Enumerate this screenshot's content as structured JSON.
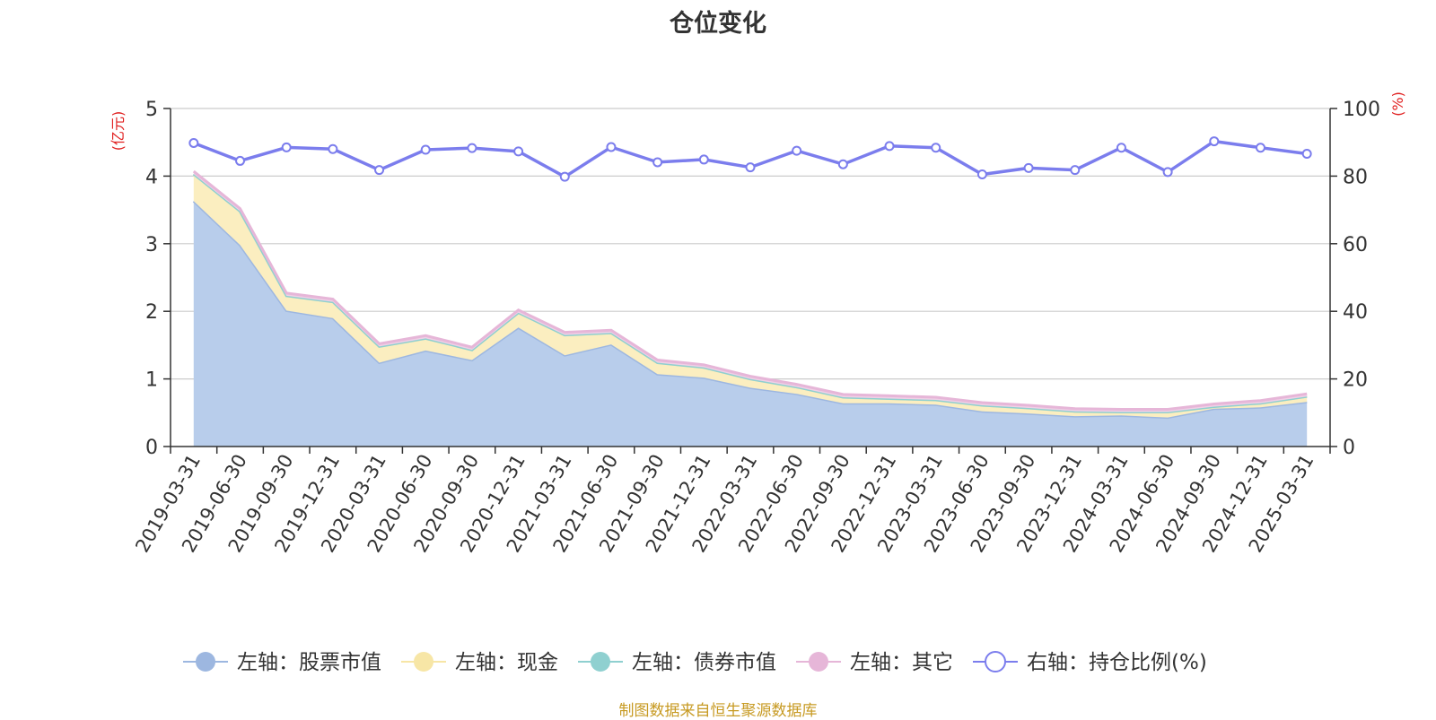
{
  "chart_data": {
    "type": "area",
    "title": "仓位变化",
    "source_note": "制图数据来自恒生聚源数据库",
    "left_axis": {
      "unit": "(亿元)",
      "ylim": [
        0,
        5
      ],
      "ticks": [
        0,
        1,
        2,
        3,
        4,
        5
      ]
    },
    "right_axis": {
      "unit": "(%)",
      "ylim": [
        0,
        100
      ],
      "ticks": [
        0,
        20,
        40,
        60,
        80,
        100
      ]
    },
    "categories": [
      "2019-03-31",
      "2019-06-30",
      "2019-09-30",
      "2019-12-31",
      "2020-03-31",
      "2020-06-30",
      "2020-09-30",
      "2020-12-31",
      "2021-03-31",
      "2021-06-30",
      "2021-09-30",
      "2021-12-31",
      "2022-03-31",
      "2022-06-30",
      "2022-09-30",
      "2022-12-31",
      "2023-03-31",
      "2023-06-30",
      "2023-09-30",
      "2023-12-31",
      "2024-03-31",
      "2024-06-30",
      "2024-09-30",
      "2024-12-31",
      "2025-03-31"
    ],
    "series": [
      {
        "name": "左轴：股票市值",
        "axis": "left",
        "stack": "total",
        "color": "#9db7e0",
        "fill": "#b8cdeb",
        "values": [
          3.63,
          2.98,
          2.01,
          1.9,
          1.24,
          1.42,
          1.28,
          1.76,
          1.35,
          1.51,
          1.07,
          1.02,
          0.87,
          0.78,
          0.64,
          0.64,
          0.62,
          0.52,
          0.49,
          0.45,
          0.46,
          0.43,
          0.56,
          0.58,
          0.66
        ]
      },
      {
        "name": "左轴：现金",
        "axis": "left",
        "stack": "total",
        "color": "#f7e6a6",
        "fill": "#fbeec0",
        "values": [
          0.4,
          0.5,
          0.22,
          0.24,
          0.24,
          0.18,
          0.15,
          0.22,
          0.3,
          0.17,
          0.17,
          0.15,
          0.13,
          0.1,
          0.09,
          0.07,
          0.07,
          0.09,
          0.08,
          0.07,
          0.05,
          0.08,
          0.03,
          0.06,
          0.08
        ]
      },
      {
        "name": "左轴：债券市值",
        "axis": "left",
        "stack": "total",
        "color": "#8fd0d0",
        "fill": "#b5e2e2",
        "values": [
          0,
          0,
          0,
          0,
          0,
          0,
          0,
          0,
          0,
          0,
          0,
          0,
          0,
          0,
          0,
          0,
          0,
          0,
          0,
          0,
          0,
          0,
          0,
          0,
          0
        ]
      },
      {
        "name": "左轴：其它",
        "axis": "left",
        "stack": "total",
        "color": "#e6b6d8",
        "fill": "#f0d0e6",
        "values": [
          0.04,
          0.04,
          0.04,
          0.04,
          0.04,
          0.04,
          0.04,
          0.04,
          0.04,
          0.04,
          0.04,
          0.04,
          0.04,
          0.04,
          0.04,
          0.04,
          0.04,
          0.04,
          0.04,
          0.04,
          0.04,
          0.04,
          0.04,
          0.04,
          0.04
        ]
      },
      {
        "name": "右轴：持仓比例(%)",
        "axis": "right",
        "color": "#7b7ded",
        "values": [
          89.8,
          84.5,
          88.5,
          88.0,
          81.8,
          87.8,
          88.3,
          87.3,
          79.8,
          88.6,
          84.1,
          84.9,
          82.6,
          87.5,
          83.5,
          88.9,
          88.4,
          80.5,
          82.4,
          81.8,
          88.4,
          81.2,
          90.3,
          88.4,
          86.6
        ]
      }
    ]
  }
}
